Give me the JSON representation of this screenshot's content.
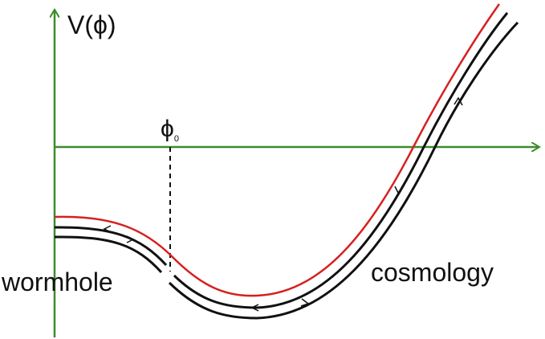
{
  "y_axis_label": "V(ϕ)",
  "marker": {
    "symbol": "ϕ",
    "subscript": "0"
  },
  "regions": [
    "wormhole",
    "cosmology"
  ]
}
